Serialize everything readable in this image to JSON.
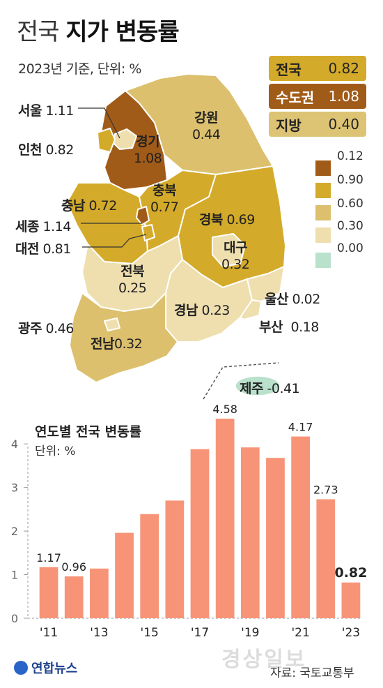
{
  "title": {
    "light": "전국",
    "bold": "지가 변동률"
  },
  "subtitle": "2023년 기준, 단위: %",
  "summary": [
    {
      "label": "전국",
      "value": "0.82",
      "color": "#d4aa2a"
    },
    {
      "label": "수도권",
      "value": "1.08",
      "color": "#a15b18"
    },
    {
      "label": "지방",
      "value": "0.40",
      "color": "#ddc474"
    }
  ],
  "legend": {
    "ticks": [
      "0.12",
      "0.90",
      "0.60",
      "0.30",
      "0.00"
    ],
    "colors": [
      "#a15b18",
      "#d4aa2a",
      "#dcc06e",
      "#efdfaf",
      "#b9e1cc"
    ]
  },
  "map": {
    "regions": [
      {
        "name": "서울",
        "value": "1.11"
      },
      {
        "name": "인천",
        "value": "0.82"
      },
      {
        "name": "경기",
        "value": "1.08"
      },
      {
        "name": "강원",
        "value": "0.44"
      },
      {
        "name": "충남",
        "value": "0.72"
      },
      {
        "name": "충북",
        "value": "0.77"
      },
      {
        "name": "세종",
        "value": "1.14"
      },
      {
        "name": "대전",
        "value": "0.81"
      },
      {
        "name": "경북",
        "value": "0.69"
      },
      {
        "name": "대구",
        "value": "0.32"
      },
      {
        "name": "전북",
        "value": "0.25"
      },
      {
        "name": "울산",
        "value": "0.02"
      },
      {
        "name": "경남",
        "value": "0.23"
      },
      {
        "name": "부산",
        "value": "0.18"
      },
      {
        "name": "광주",
        "value": "0.46"
      },
      {
        "name": "전남",
        "value": "0.32"
      },
      {
        "name": "제주",
        "value": "-0.41"
      }
    ]
  },
  "chart_data": {
    "type": "bar",
    "title": "연도별 전국 변동률",
    "ylabel": "단위: %",
    "categories": [
      "'11",
      "'12",
      "'13",
      "'14",
      "'15",
      "'16",
      "'17",
      "'18",
      "'19",
      "'20",
      "'21",
      "'22",
      "'23"
    ],
    "x_tick_labels": [
      "'11",
      "'13",
      "'15",
      "'17",
      "'19",
      "'21",
      "'23"
    ],
    "values": [
      1.17,
      0.96,
      1.14,
      1.96,
      2.39,
      2.7,
      3.88,
      4.58,
      3.92,
      3.68,
      4.17,
      2.73,
      0.82
    ],
    "data_labels": [
      "1.17",
      "0.96",
      "",
      "",
      "",
      "",
      "",
      "4.58",
      "",
      "",
      "4.17",
      "2.73",
      "0.82"
    ],
    "yticks": [
      0,
      1,
      2,
      3,
      4
    ],
    "ylim": [
      0,
      4.9
    ],
    "grid": false,
    "bar_color": "#f79478"
  },
  "footer": {
    "logo": "연합뉴스",
    "source": "자료: 국토교통부",
    "watermark": "경상일보"
  }
}
